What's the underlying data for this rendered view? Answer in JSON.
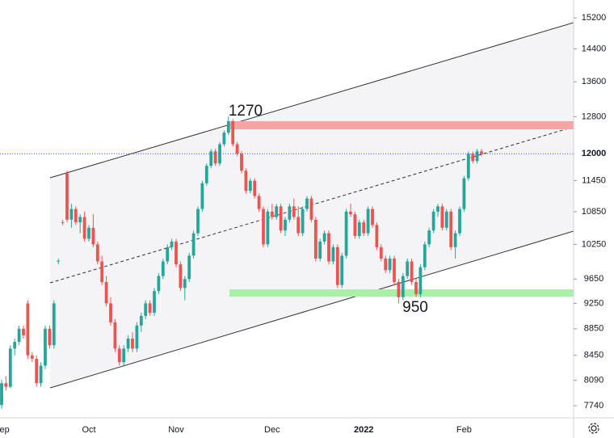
{
  "chart_data": {
    "type": "candlestick",
    "categories": [
      "Sep",
      null,
      null,
      null,
      null,
      null,
      null,
      null,
      null,
      null,
      null,
      null,
      null,
      null,
      null,
      null,
      null,
      null,
      null,
      null,
      "Oct",
      null,
      null,
      null,
      null,
      null,
      null,
      null,
      null,
      null,
      null,
      null,
      null,
      null,
      null,
      null,
      null,
      null,
      null,
      null,
      "Nov",
      null,
      null,
      null,
      null,
      null,
      null,
      null,
      null,
      null,
      null,
      null,
      null,
      null,
      null,
      null,
      null,
      null,
      null,
      null,
      null,
      null,
      "Dec",
      null,
      null,
      null,
      null,
      null,
      null,
      null,
      null,
      null,
      null,
      null,
      null,
      null,
      null,
      null,
      null,
      null,
      null,
      null,
      null,
      "2022",
      null,
      null,
      null,
      null,
      null,
      null,
      null,
      null,
      null,
      null,
      null,
      null,
      null,
      null,
      null,
      null,
      null,
      null,
      null,
      null,
      null,
      null,
      "Feb",
      null,
      null,
      null,
      null
    ],
    "open": [
      7750,
      8050,
      8000,
      8550,
      8650,
      8850,
      9250,
      8450,
      8400,
      8050,
      8300,
      8850,
      8600,
      9950,
      10650,
      11600,
      10700,
      10900,
      10650,
      10750,
      10350,
      10550,
      10250,
      9950,
      9600,
      9250,
      8950,
      8550,
      8350,
      8550,
      8700,
      8550,
      8900,
      9050,
      9250,
      9100,
      9450,
      9700,
      9950,
      10200,
      10300,
      9900,
      9500,
      9650,
      10050,
      10450,
      10900,
      11400,
      11750,
      12050,
      11800,
      12200,
      12450,
      12700,
      12200,
      12000,
      11650,
      11250,
      11450,
      11150,
      10900,
      10250,
      10850,
      10750,
      10950,
      10500,
      10700,
      10950,
      10750,
      10450,
      10900,
      11100,
      10700,
      10000,
      10300,
      10450,
      9950,
      10200,
      9550,
      10050,
      10850,
      10800,
      10400,
      10650,
      10450,
      10900,
      10600,
      10200,
      10000,
      9800,
      10000,
      9600,
      9350,
      9700,
      9950,
      9600,
      9400,
      9850,
      10250,
      10500,
      10850,
      10950,
      10550,
      10850,
      10200,
      10450,
      10900,
      11500,
      12000,
      11850,
      12050
    ],
    "high": [
      8100,
      8150,
      8600,
      8700,
      8900,
      8900,
      9300,
      8500,
      8450,
      8350,
      8900,
      8900,
      9300,
      10000,
      10700,
      11650,
      11000,
      10950,
      10800,
      10850,
      10600,
      10800,
      10300,
      10050,
      9700,
      9350,
      9000,
      8600,
      8600,
      8750,
      8800,
      8950,
      9100,
      9300,
      9300,
      9500,
      9750,
      10000,
      10250,
      10350,
      10350,
      9950,
      9700,
      10100,
      10500,
      10950,
      11450,
      11800,
      12100,
      12100,
      12250,
      12500,
      12800,
      12750,
      12250,
      12050,
      11700,
      11500,
      11500,
      11200,
      10950,
      10900,
      11000,
      11000,
      11000,
      10750,
      11000,
      11100,
      10950,
      10950,
      11150,
      11150,
      10750,
      10350,
      10500,
      10500,
      10250,
      10250,
      10100,
      10900,
      11000,
      10850,
      10700,
      10700,
      10950,
      10950,
      10650,
      10250,
      10050,
      10050,
      10050,
      9650,
      9750,
      10000,
      10000,
      9650,
      9900,
      10300,
      10550,
      10900,
      11000,
      11000,
      10900,
      10900,
      10500,
      10950,
      11550,
      12050,
      12050,
      12100,
      12100
    ],
    "low": [
      7700,
      7950,
      7980,
      8450,
      8600,
      8700,
      8400,
      8350,
      8000,
      8000,
      8250,
      8550,
      8550,
      9900,
      10600,
      10650,
      10550,
      10600,
      10450,
      10300,
      10300,
      10200,
      9900,
      9550,
      9200,
      8900,
      8500,
      8300,
      8300,
      8500,
      8500,
      8500,
      8800,
      9000,
      9050,
      9050,
      9400,
      9650,
      9900,
      10150,
      9850,
      9450,
      9300,
      9600,
      10000,
      10400,
      10850,
      11350,
      11700,
      11750,
      11750,
      12150,
      12400,
      12150,
      11950,
      11600,
      11200,
      11200,
      11100,
      10850,
      10200,
      10200,
      10700,
      10700,
      10450,
      10400,
      10650,
      10700,
      10400,
      10400,
      10850,
      10650,
      9950,
      9950,
      10250,
      9900,
      9900,
      9500,
      9500,
      10000,
      10750,
      10350,
      10350,
      10400,
      10400,
      10550,
      10150,
      9950,
      9750,
      9750,
      9550,
      9250,
      9300,
      9650,
      9550,
      9350,
      9350,
      9800,
      10200,
      10450,
      10750,
      10500,
      10500,
      10150,
      10000,
      10400,
      10850,
      11450,
      11800,
      11800,
      11950
    ],
    "close": [
      8050,
      8000,
      8550,
      8650,
      8850,
      8750,
      8450,
      8400,
      8050,
      8300,
      8850,
      8600,
      9250,
      9960,
      10640,
      10700,
      10900,
      10650,
      10750,
      10350,
      10550,
      10250,
      9950,
      9600,
      9250,
      8950,
      8550,
      8350,
      8550,
      8700,
      8550,
      8900,
      9050,
      9250,
      9100,
      9450,
      9700,
      9950,
      10200,
      10300,
      9900,
      9500,
      9650,
      10050,
      10450,
      10900,
      11400,
      11750,
      12050,
      11800,
      12200,
      12450,
      12700,
      12200,
      12000,
      11650,
      11250,
      11450,
      11150,
      10900,
      10250,
      10850,
      10750,
      10950,
      10500,
      10700,
      10950,
      10750,
      10450,
      10900,
      11100,
      10700,
      10000,
      10300,
      10450,
      9950,
      10200,
      9550,
      10050,
      10850,
      10800,
      10400,
      10650,
      10450,
      10900,
      10600,
      10200,
      10000,
      9800,
      10000,
      9600,
      9350,
      9700,
      9950,
      9600,
      9400,
      9850,
      10250,
      10500,
      10850,
      10950,
      10550,
      10850,
      10200,
      10450,
      10900,
      11500,
      12000,
      11850,
      12050,
      12000
    ],
    "up_color": "#26a69a",
    "down_color": "#ef5350",
    "log": true,
    "ylim": [
      7580,
      15680
    ],
    "yticks": [
      15200,
      14400,
      13600,
      12800,
      12000,
      11450,
      10850,
      10250,
      9650,
      9250,
      8850,
      8450,
      8090,
      7740
    ],
    "last_price": 12000,
    "annotations": [
      "1270",
      "950"
    ]
  }
}
